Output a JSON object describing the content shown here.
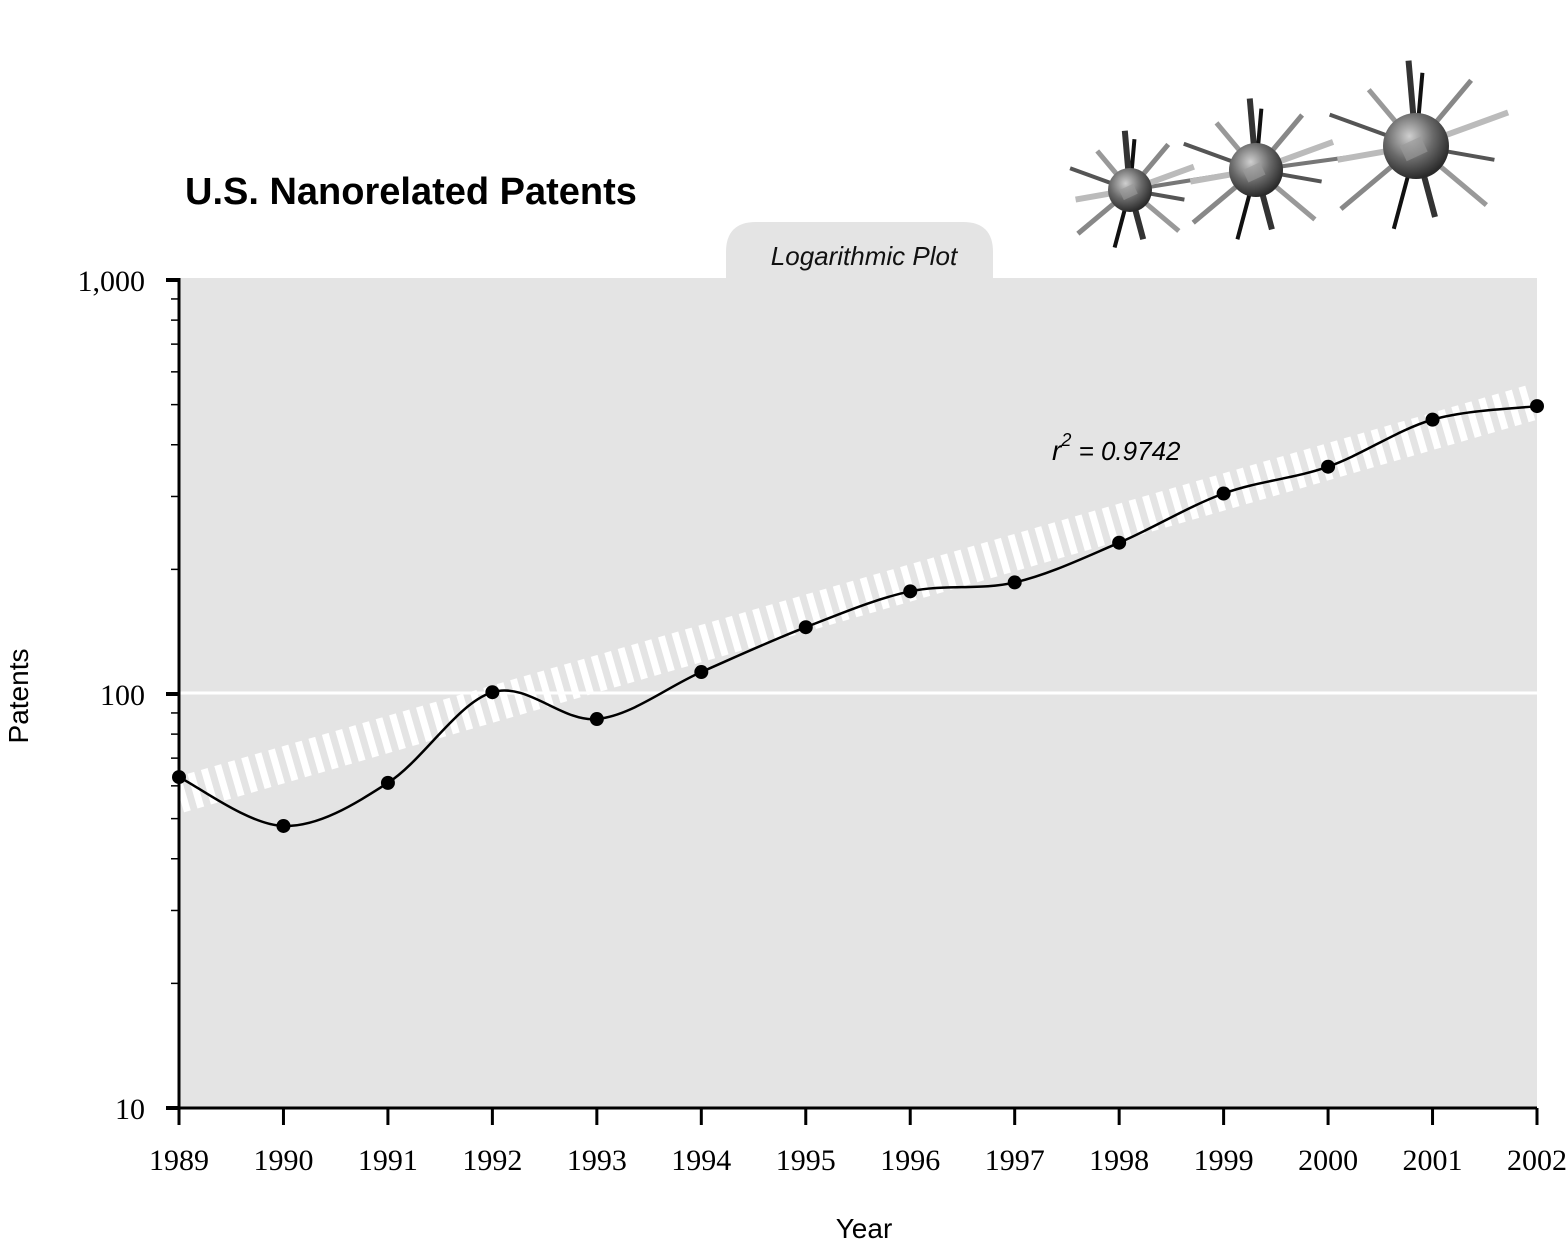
{
  "chart_data": {
    "type": "line",
    "title": "U.S. Nanorelated Patents",
    "tab_label": "Logarithmic Plot",
    "xlabel": "Year",
    "ylabel": "Patents",
    "y_scale": "log",
    "ylim": [
      10,
      1000
    ],
    "y_ticks": [
      {
        "value": 10,
        "label": "10"
      },
      {
        "value": 100,
        "label": "100"
      },
      {
        "value": 1000,
        "label": "1,000"
      }
    ],
    "x": [
      1989,
      1990,
      1991,
      1992,
      1993,
      1994,
      1995,
      1996,
      1997,
      1998,
      1999,
      2000,
      2001,
      2002
    ],
    "x_tick_labels": [
      "1989",
      "1990",
      "1991",
      "1992",
      "1993",
      "1994",
      "1995",
      "1996",
      "1997",
      "1998",
      "1999",
      "2000",
      "2001",
      "2002"
    ],
    "series": [
      {
        "values": [
          63,
          48,
          61,
          101,
          87,
          113,
          145,
          177,
          186,
          232,
          305,
          354,
          460,
          496
        ]
      }
    ],
    "trendline": {
      "style": "dashed-white",
      "start": [
        1989,
        57
      ],
      "end": [
        2002,
        510
      ]
    },
    "annotation": {
      "r_label": "r",
      "exponent": "2",
      "value_text": " = 0.9742"
    },
    "grid": "horizontal line at 100 only",
    "colors": {
      "plot_background": "#e4e4e4",
      "line": "#000000",
      "trendline": "#ffffff"
    }
  },
  "decoration": {
    "icon": "nanoparticle-cluster-icon"
  }
}
